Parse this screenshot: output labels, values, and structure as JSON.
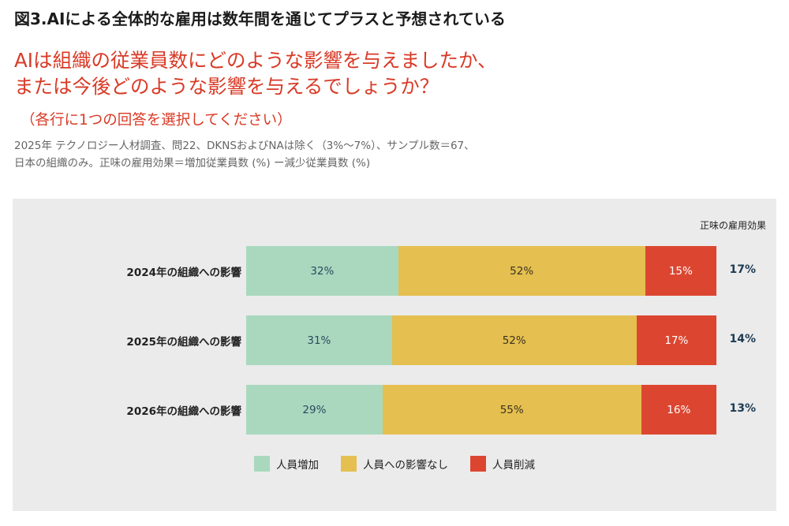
{
  "figure_title": "図3.AIによる全体的な雇用は数年間を通じてプラスと予想されている",
  "question": {
    "line1": "AIは組織の従業員数にどのような影響を与えましたか、",
    "line2": "または今後どのような影響を与えるでしょうか？"
  },
  "instruction": "（各行に1つの回答を選択してください）",
  "note": {
    "line1": "2025年 テクノロジー人材調査、問22、DKNSおよびNAは除く（3%〜7%）、サンプル数＝67、",
    "line2": "日本の組織のみ。正味の雇用効果＝増加従業員数 (%) ー減少従業員数 (%)"
  },
  "colors": {
    "increase": "#a9d8bf",
    "no_impact": "#e5bf50",
    "decrease": "#dc4631",
    "panel_bg": "#ebebeb",
    "net_value": "#1d3b52",
    "red_heading": "#d93a26"
  },
  "chart_data": {
    "type": "bar",
    "orientation": "horizontal",
    "stacked": true,
    "net_effect_header": "正味の雇用効果",
    "categories": [
      "2024年の組織への影響",
      "2025年の組織への影響",
      "2026年の組織への影響"
    ],
    "series": [
      {
        "name": "人員増加",
        "values": [
          32,
          31,
          29
        ],
        "labels": [
          "32%",
          "31%",
          "29%"
        ],
        "color": "#a9d8bf"
      },
      {
        "name": "人員への影響なし",
        "values": [
          52,
          52,
          55
        ],
        "labels": [
          "52%",
          "52%",
          "55%"
        ],
        "color": "#e5bf50"
      },
      {
        "name": "人員削減",
        "values": [
          15,
          17,
          16
        ],
        "labels": [
          "15%",
          "17%",
          "16%"
        ],
        "color": "#dc4631"
      }
    ],
    "net_effect": [
      "17%",
      "14%",
      "13%"
    ],
    "legend_position": "bottom",
    "grid": false
  }
}
